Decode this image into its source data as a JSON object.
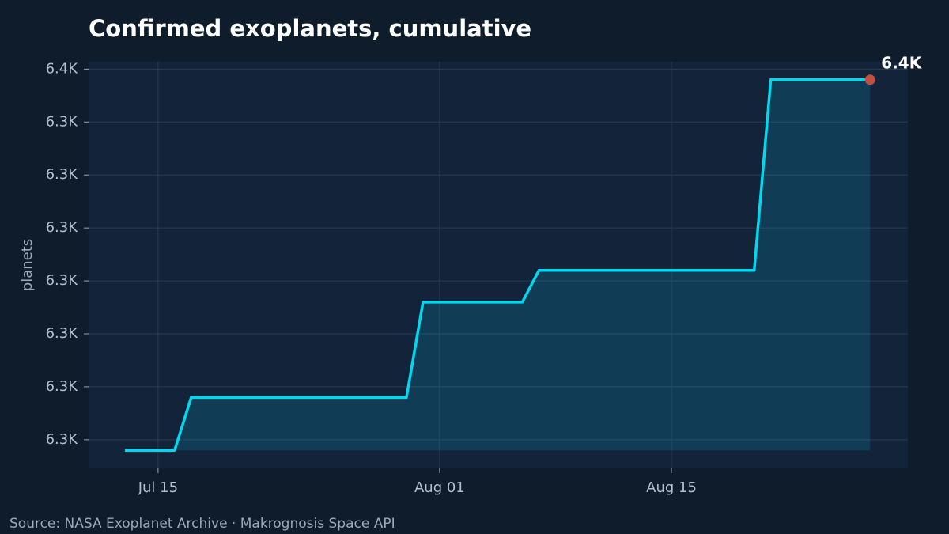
{
  "chart_data": {
    "type": "line",
    "title": "Confirmed exoplanets, cumulative",
    "y_label": "planets",
    "source": "Source: NASA Exoplanet Archive · Makrognosis Space API",
    "x": [
      "Jul 13",
      "Jul 14",
      "Jul 15",
      "Jul 16",
      "Jul 17",
      "Jul 18",
      "Jul 19",
      "Jul 20",
      "Jul 21",
      "Jul 22",
      "Jul 23",
      "Jul 24",
      "Jul 25",
      "Jul 26",
      "Jul 27",
      "Jul 28",
      "Jul 29",
      "Jul 30",
      "Jul 31",
      "Aug 01",
      "Aug 02",
      "Aug 03",
      "Aug 04",
      "Aug 05",
      "Aug 06",
      "Aug 07",
      "Aug 08",
      "Aug 09",
      "Aug 10",
      "Aug 11",
      "Aug 12",
      "Aug 13",
      "Aug 14",
      "Aug 15",
      "Aug 16",
      "Aug 17",
      "Aug 18",
      "Aug 19",
      "Aug 20",
      "Aug 21",
      "Aug 22",
      "Aug 23",
      "Aug 24",
      "Aug 25",
      "Aug 26",
      "Aug 27"
    ],
    "values": [
      6319,
      6319,
      6319,
      6319,
      6324,
      6324,
      6324,
      6324,
      6324,
      6324,
      6324,
      6324,
      6324,
      6324,
      6324,
      6324,
      6324,
      6324,
      6333,
      6333,
      6333,
      6333,
      6333,
      6333,
      6333,
      6336,
      6336,
      6336,
      6336,
      6336,
      6336,
      6336,
      6336,
      6336,
      6336,
      6336,
      6336,
      6336,
      6336,
      6354,
      6354,
      6354,
      6354,
      6354,
      6354,
      6354
    ],
    "color": "#00d8f0",
    "highlight_color": "#c0513f",
    "highlight": {
      "x": "Aug 27",
      "value": 6354,
      "label": "6.4K"
    },
    "ylim": [
      6317.3,
      6355.7
    ],
    "yticks": [
      {
        "value": 6320,
        "label": "6.3K"
      },
      {
        "value": 6325,
        "label": "6.3K"
      },
      {
        "value": 6330,
        "label": "6.3K"
      },
      {
        "value": 6335,
        "label": "6.3K"
      },
      {
        "value": 6340,
        "label": "6.3K"
      },
      {
        "value": 6345,
        "label": "6.3K"
      },
      {
        "value": 6350,
        "label": "6.3K"
      },
      {
        "value": 6355,
        "label": "6.4K"
      }
    ],
    "xticks": [
      "Jul 15",
      "Aug 01",
      "Aug 15"
    ],
    "grid": true
  }
}
